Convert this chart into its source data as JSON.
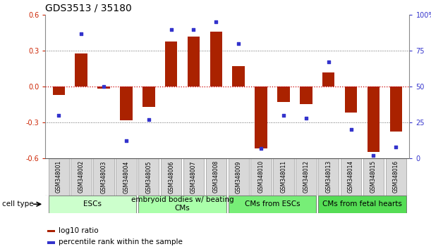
{
  "title": "GDS3513 / 35180",
  "samples": [
    "GSM348001",
    "GSM348002",
    "GSM348003",
    "GSM348004",
    "GSM348005",
    "GSM348006",
    "GSM348007",
    "GSM348008",
    "GSM348009",
    "GSM348010",
    "GSM348011",
    "GSM348012",
    "GSM348013",
    "GSM348014",
    "GSM348015",
    "GSM348016"
  ],
  "log10_ratio": [
    -0.07,
    0.28,
    -0.02,
    -0.28,
    -0.17,
    0.38,
    0.42,
    0.46,
    0.17,
    -0.52,
    -0.13,
    -0.15,
    0.12,
    -0.22,
    -0.55,
    -0.38
  ],
  "percentile_rank": [
    30,
    87,
    50,
    12,
    27,
    90,
    90,
    95,
    80,
    7,
    30,
    28,
    67,
    20,
    2,
    8
  ],
  "bar_color": "#aa2200",
  "dot_color": "#3333cc",
  "ylim": [
    -0.6,
    0.6
  ],
  "y2lim": [
    0,
    100
  ],
  "yticks": [
    -0.6,
    -0.3,
    0.0,
    0.3,
    0.6
  ],
  "y2ticks": [
    0,
    25,
    50,
    75,
    100
  ],
  "y2ticklabels": [
    "0",
    "25",
    "50",
    "75",
    "100%"
  ],
  "hline_color": "#cc0000",
  "dotline_color": "#666666",
  "groups": [
    {
      "label": "ESCs",
      "start": 0,
      "end": 3,
      "color": "#ccffcc"
    },
    {
      "label": "embryoid bodies w/ beating\nCMs",
      "start": 4,
      "end": 7,
      "color": "#aaffaa"
    },
    {
      "label": "CMs from ESCs",
      "start": 8,
      "end": 11,
      "color": "#77ee77"
    },
    {
      "label": "CMs from fetal hearts",
      "start": 12,
      "end": 15,
      "color": "#55dd55"
    }
  ],
  "legend_log10": "log10 ratio",
  "legend_pct": "percentile rank within the sample",
  "title_fontsize": 10,
  "tick_fontsize": 7,
  "group_fontsize": 7.5,
  "sample_fontsize": 5.5,
  "cell_type_label": "cell type"
}
